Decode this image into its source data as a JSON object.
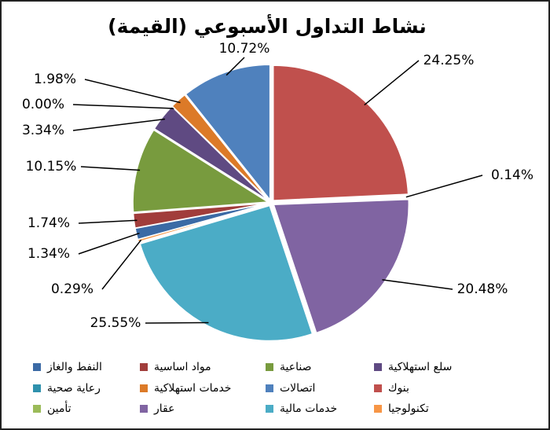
{
  "chart_data": {
    "type": "pie",
    "title": "نشاط التداول الأسبوعي (القيمة)",
    "categories": [
      "النفط والغاز",
      "مواد اساسية",
      "صناعية",
      "سلع استهلاكية",
      "رعاية صحية",
      "خدمات استهلاكية",
      "اتصالات",
      "بنوك",
      "تأمين",
      "عقار",
      "خدمات مالية",
      "تكنولوجيا"
    ],
    "values": [
      1.34,
      1.74,
      10.15,
      3.34,
      0.0,
      1.98,
      10.72,
      24.25,
      0.14,
      20.48,
      25.55,
      0.29
    ],
    "value_labels": [
      "1.34%",
      "1.74%",
      "10.15%",
      "3.34%",
      "0.00%",
      "1.98%",
      "10.72%",
      "24.25%",
      "0.14%",
      "20.48%",
      "25.55%",
      "0.29%"
    ],
    "colors": [
      "#3b6aa5",
      "#a13d3b",
      "#789b3e",
      "#5f4a82",
      "#2f91ad",
      "#dc7a28",
      "#4f81bd",
      "#c0504d",
      "#9bbb59",
      "#8064a2",
      "#4bacc6",
      "#f79646"
    ],
    "legend": "bottom"
  }
}
